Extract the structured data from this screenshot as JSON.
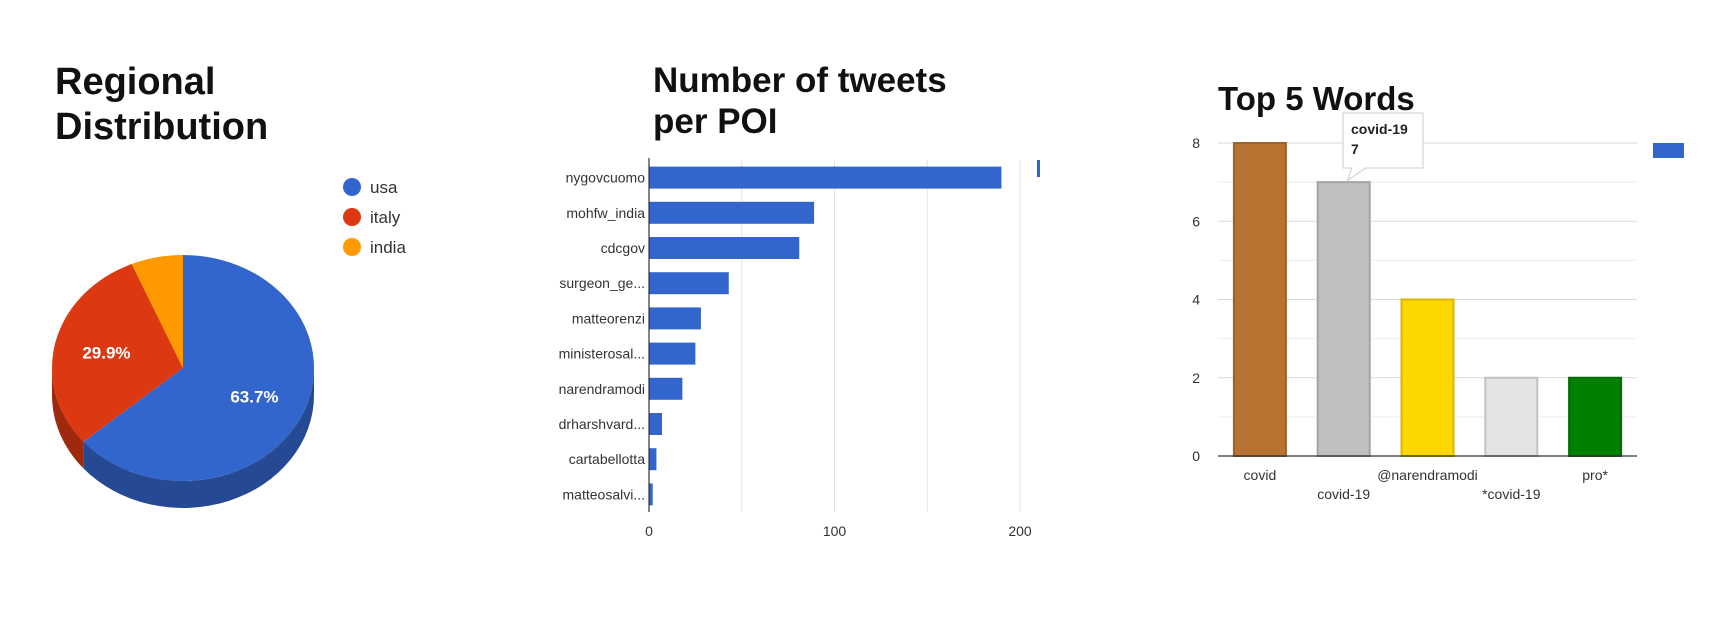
{
  "chart_data": [
    {
      "type": "pie",
      "title": "Regional\nDistribution",
      "categories": [
        "usa",
        "italy",
        "india"
      ],
      "values": [
        63.7,
        29.9,
        6.4
      ],
      "slice_labels": [
        "63.7%",
        "29.9%",
        ""
      ],
      "colors": [
        "#3366cc",
        "#dc3912",
        "#ff9900"
      ],
      "legend": "right",
      "style": "3d"
    },
    {
      "type": "bar",
      "orientation": "horizontal",
      "title": "Number of tweets\nper POI",
      "categories": [
        "nygovcuomo",
        "mohfw_india",
        "cdcgov",
        "surgeon_ge...",
        "matteorenzi",
        "ministerosal...",
        "narendramodi",
        "drharshvard...",
        "cartabellotta",
        "matteosalvi..."
      ],
      "values": [
        190,
        89,
        81,
        43,
        28,
        25,
        18,
        7,
        4,
        2
      ],
      "xlim": [
        0,
        200
      ],
      "xticks": [
        0,
        100,
        200
      ],
      "color": "#3366cc",
      "grid": true
    },
    {
      "type": "bar",
      "title": "Top 5 Words",
      "categories": [
        "covid",
        "covid-19",
        "@narendramodi",
        "*covid-19",
        "pro*"
      ],
      "values": [
        8,
        7,
        4,
        2,
        2
      ],
      "colors": [
        "#b87333",
        "#c0c0c0",
        "#ffd700",
        "#e5e4e2",
        "#008000"
      ],
      "ylim": [
        0,
        8
      ],
      "yticks": [
        0,
        2,
        4,
        6,
        8
      ],
      "grid": true,
      "tooltip": {
        "category": "covid-19",
        "value": "7"
      }
    }
  ]
}
